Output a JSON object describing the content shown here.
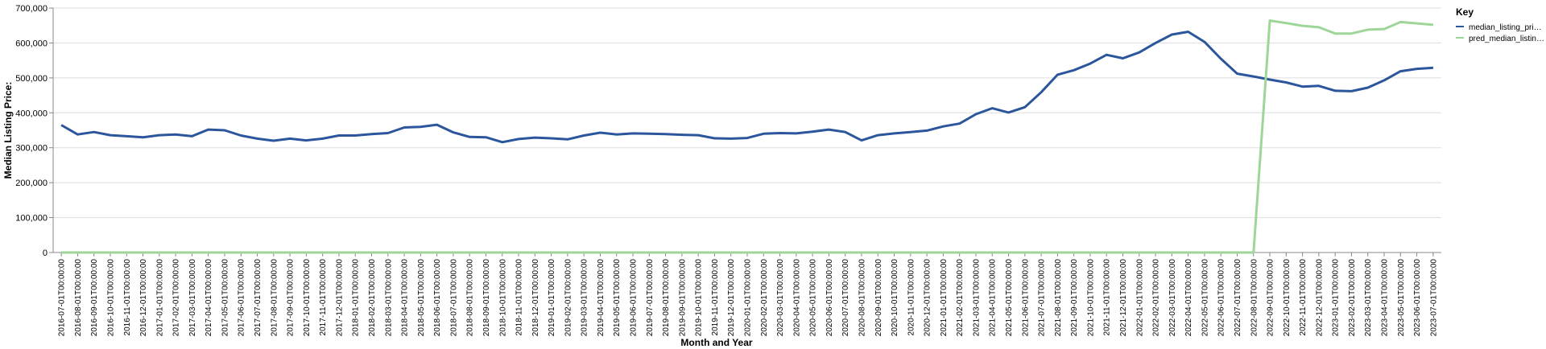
{
  "chart_data": {
    "type": "line",
    "x_label": "Month and Year",
    "y_label": "Median Listing Price:",
    "legend_title": "Key",
    "legend_position": "right",
    "grid": true,
    "categories": [
      "2016-07-01T00:00:00",
      "2016-08-01T00:00:00",
      "2016-09-01T00:00:00",
      "2016-10-01T00:00:00",
      "2016-11-01T00:00:00",
      "2016-12-01T00:00:00",
      "2017-01-01T00:00:00",
      "2017-02-01T00:00:00",
      "2017-03-01T00:00:00",
      "2017-04-01T00:00:00",
      "2017-05-01T00:00:00",
      "2017-06-01T00:00:00",
      "2017-07-01T00:00:00",
      "2017-08-01T00:00:00",
      "2017-09-01T00:00:00",
      "2017-10-01T00:00:00",
      "2017-11-01T00:00:00",
      "2017-12-01T00:00:00",
      "2018-01-01T00:00:00",
      "2018-02-01T00:00:00",
      "2018-03-01T00:00:00",
      "2018-04-01T00:00:00",
      "2018-05-01T00:00:00",
      "2018-06-01T00:00:00",
      "2018-07-01T00:00:00",
      "2018-08-01T00:00:00",
      "2018-09-01T00:00:00",
      "2018-10-01T00:00:00",
      "2018-11-01T00:00:00",
      "2018-12-01T00:00:00",
      "2019-01-01T00:00:00",
      "2019-02-01T00:00:00",
      "2019-03-01T00:00:00",
      "2019-04-01T00:00:00",
      "2019-05-01T00:00:00",
      "2019-06-01T00:00:00",
      "2019-07-01T00:00:00",
      "2019-08-01T00:00:00",
      "2019-09-01T00:00:00",
      "2019-10-01T00:00:00",
      "2019-11-01T00:00:00",
      "2019-12-01T00:00:00",
      "2020-01-01T00:00:00",
      "2020-02-01T00:00:00",
      "2020-03-01T00:00:00",
      "2020-04-01T00:00:00",
      "2020-05-01T00:00:00",
      "2020-06-01T00:00:00",
      "2020-07-01T00:00:00",
      "2020-08-01T00:00:00",
      "2020-09-01T00:00:00",
      "2020-10-01T00:00:00",
      "2020-11-01T00:00:00",
      "2020-12-01T00:00:00",
      "2021-01-01T00:00:00",
      "2021-02-01T00:00:00",
      "2021-03-01T00:00:00",
      "2021-04-01T00:00:00",
      "2021-05-01T00:00:00",
      "2021-06-01T00:00:00",
      "2021-07-01T00:00:00",
      "2021-08-01T00:00:00",
      "2021-09-01T00:00:00",
      "2021-10-01T00:00:00",
      "2021-11-01T00:00:00",
      "2021-12-01T00:00:00",
      "2022-01-01T00:00:00",
      "2022-02-01T00:00:00",
      "2022-03-01T00:00:00",
      "2022-04-01T00:00:00",
      "2022-05-01T00:00:00",
      "2022-06-01T00:00:00",
      "2022-07-01T00:00:00",
      "2022-08-01T00:00:00",
      "2022-09-01T00:00:00",
      "2022-10-01T00:00:00",
      "2022-11-01T00:00:00",
      "2022-12-01T00:00:00",
      "2023-01-01T00:00:00",
      "2023-02-01T00:00:00",
      "2023-03-01T00:00:00",
      "2023-04-01T00:00:00",
      "2023-05-01T00:00:00",
      "2023-06-01T00:00:00",
      "2023-07-01T00:00:00"
    ],
    "series": [
      {
        "name": "median_listing_pri…",
        "color": "#2b569c",
        "values": [
          365000,
          338000,
          345000,
          336000,
          333000,
          330000,
          336000,
          338000,
          333000,
          352000,
          350000,
          335000,
          326000,
          320000,
          326000,
          321000,
          326000,
          335000,
          335000,
          339000,
          342000,
          358000,
          360000,
          366000,
          344000,
          331000,
          330000,
          316000,
          325000,
          329000,
          327000,
          324000,
          335000,
          343000,
          338000,
          341000,
          340000,
          339000,
          337000,
          336000,
          327000,
          326000,
          328000,
          340000,
          342000,
          341000,
          346000,
          352000,
          345000,
          321000,
          336000,
          341000,
          345000,
          349000,
          361000,
          369000,
          396000,
          413000,
          401000,
          416000,
          459000,
          509000,
          522000,
          541000,
          566000,
          556000,
          573000,
          600000,
          624000,
          632000,
          603000,
          555000,
          512000,
          504000,
          495000,
          487000,
          475000,
          477000,
          463000,
          462000,
          472000,
          493000,
          519000,
          526000,
          529000
        ]
      },
      {
        "name": "pred_median_listin…",
        "color": "#9dd698",
        "values": [
          0,
          0,
          0,
          0,
          0,
          0,
          0,
          0,
          0,
          0,
          0,
          0,
          0,
          0,
          0,
          0,
          0,
          0,
          0,
          0,
          0,
          0,
          0,
          0,
          0,
          0,
          0,
          0,
          0,
          0,
          0,
          0,
          0,
          0,
          0,
          0,
          0,
          0,
          0,
          0,
          0,
          0,
          0,
          0,
          0,
          0,
          0,
          0,
          0,
          0,
          0,
          0,
          0,
          0,
          0,
          0,
          0,
          0,
          0,
          0,
          0,
          0,
          0,
          0,
          0,
          0,
          0,
          0,
          0,
          0,
          0,
          0,
          0,
          0,
          664000,
          657000,
          649000,
          645000,
          627000,
          627000,
          638000,
          640000,
          660000,
          656000,
          652000
        ]
      }
    ],
    "ylim": [
      0,
      700000
    ],
    "yticks": [
      0,
      {
        "value": 100000,
        "label": "100,000"
      },
      {
        "value": 200000,
        "label": "200,000"
      },
      {
        "value": 300000,
        "label": "300,000"
      },
      {
        "value": 400000,
        "label": "400,000"
      },
      {
        "value": 500000,
        "label": "500,000"
      },
      {
        "value": 600000,
        "label": "600,000"
      },
      {
        "value": 700000,
        "label": "700,000"
      }
    ]
  }
}
